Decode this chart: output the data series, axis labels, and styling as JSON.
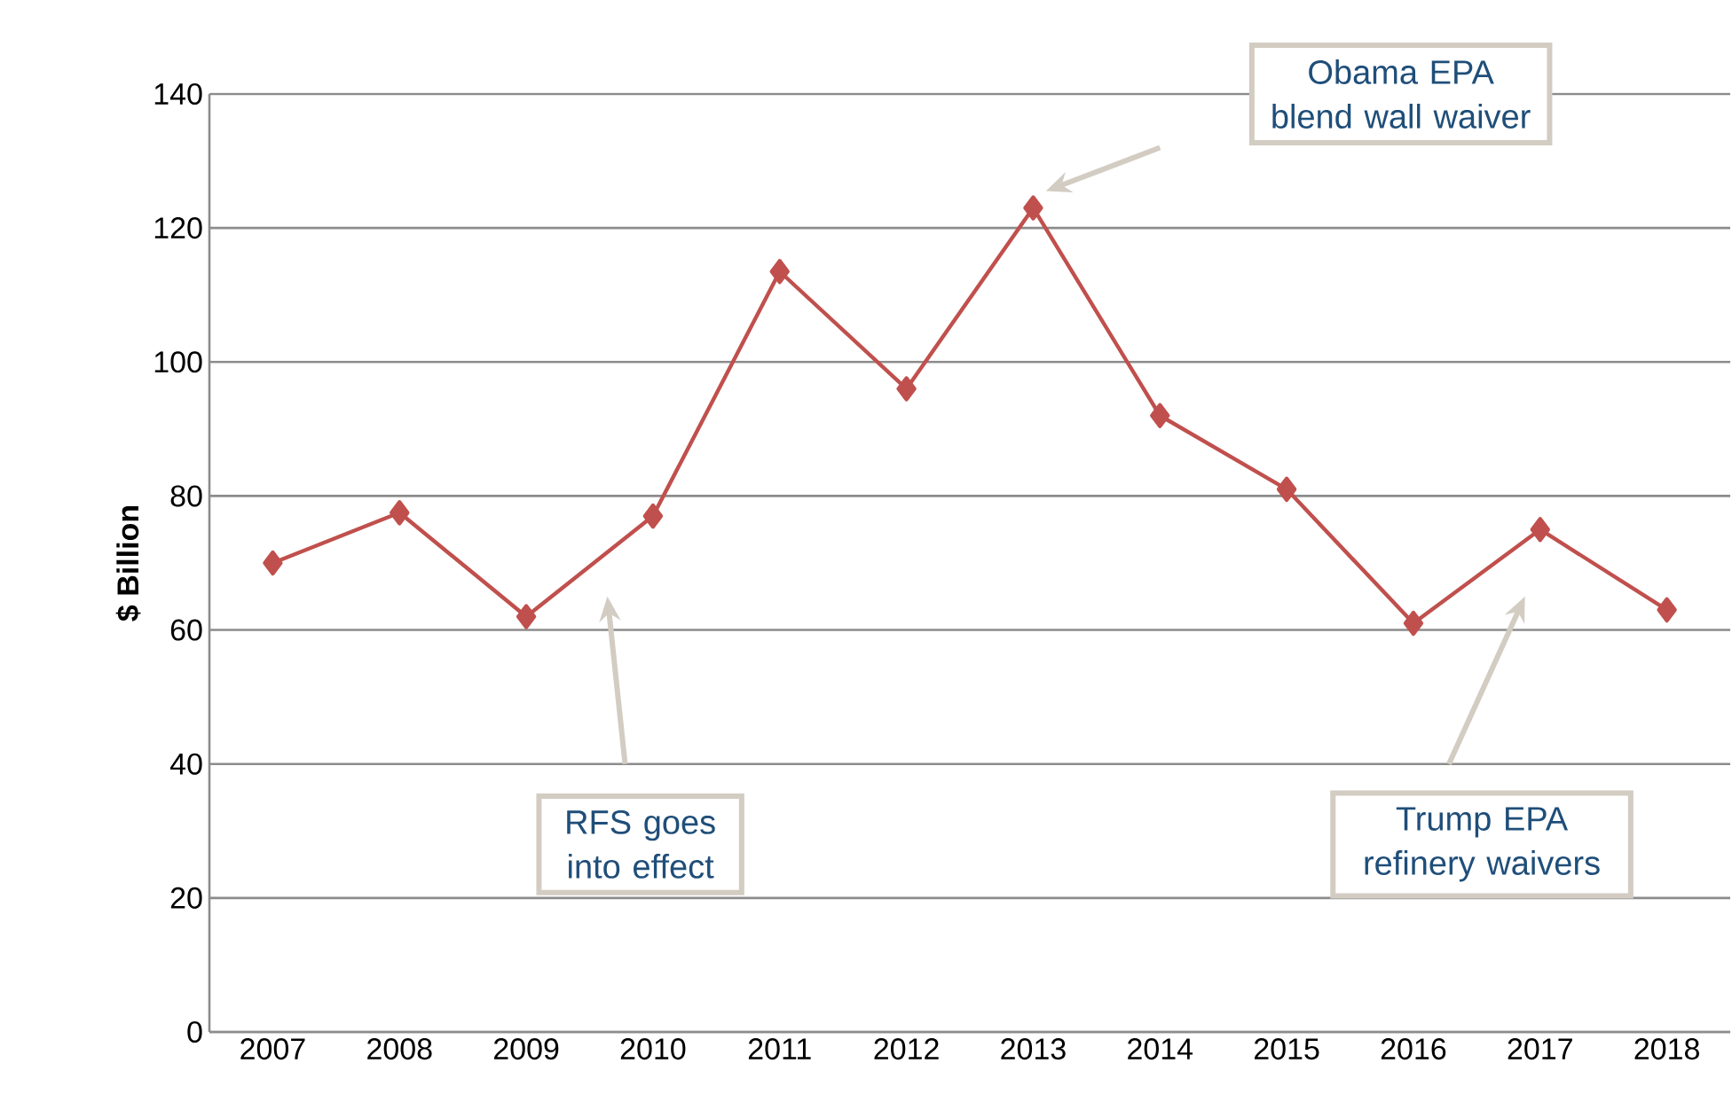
{
  "chart_data": {
    "type": "line",
    "ylabel": "$ Billion",
    "categories": [
      "2007",
      "2008",
      "2009",
      "2010",
      "2011",
      "2012",
      "2013",
      "2014",
      "2015",
      "2016",
      "2017",
      "2018"
    ],
    "series": [
      {
        "color": "#c0504d",
        "values": [
          70,
          77.5,
          62,
          77,
          113.5,
          96,
          123,
          92,
          81,
          61,
          75,
          63
        ]
      }
    ],
    "ylim": [
      0,
      140
    ],
    "yticks": [
      0,
      20,
      40,
      60,
      80,
      100,
      120,
      140
    ],
    "grid": "y",
    "marker": "diamond",
    "line_style": "solid",
    "annotations": [
      "Obama EPA blend wall waiver",
      "RFS goes into effect",
      "Trump EPA refinery waivers"
    ]
  }
}
